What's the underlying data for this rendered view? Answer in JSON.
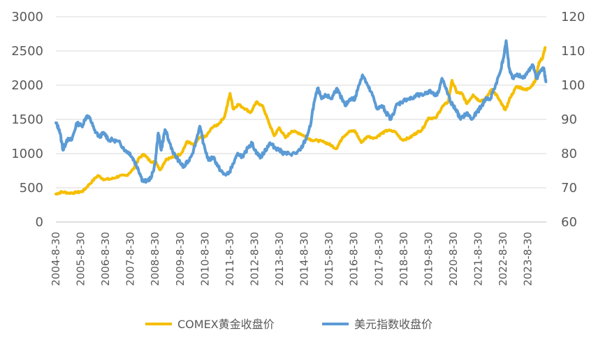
{
  "chart_data": {
    "type": "line",
    "x": [
      "2004-8-30",
      "2005-8-30",
      "2006-8-30",
      "2007-8-30",
      "2008-8-30",
      "2009-8-30",
      "2010-8-30",
      "2011-8-30",
      "2012-8-30",
      "2013-8-30",
      "2014-8-30",
      "2015-8-30",
      "2016-8-30",
      "2017-8-30",
      "2018-8-30",
      "2019-8-30",
      "2020-8-30",
      "2021-8-30",
      "2022-8-30",
      "2023-8-30"
    ],
    "y_left_ticks": [
      "0",
      "500",
      "1000",
      "1500",
      "2000",
      "2500",
      "3000"
    ],
    "y_right_ticks": [
      "60",
      "70",
      "80",
      "90",
      "100",
      "110",
      "120"
    ],
    "ylim_left": [
      0,
      3000
    ],
    "ylim_right": [
      60,
      120
    ],
    "grid": true,
    "legend_position": "bottom",
    "series": [
      {
        "name": "COMEX黄金收盘价",
        "axis": "left",
        "color": "#F5BE00",
        "points": [
          [
            2004.66,
            410
          ],
          [
            2004.9,
            440
          ],
          [
            2005.2,
            425
          ],
          [
            2005.5,
            430
          ],
          [
            2005.75,
            450
          ],
          [
            2006.0,
            550
          ],
          [
            2006.35,
            680
          ],
          [
            2006.6,
            620
          ],
          [
            2006.9,
            630
          ],
          [
            2007.2,
            670
          ],
          [
            2007.5,
            680
          ],
          [
            2007.8,
            780
          ],
          [
            2008.0,
            930
          ],
          [
            2008.2,
            990
          ],
          [
            2008.45,
            890
          ],
          [
            2008.7,
            870
          ],
          [
            2008.85,
            760
          ],
          [
            2009.1,
            920
          ],
          [
            2009.4,
            950
          ],
          [
            2009.7,
            1000
          ],
          [
            2009.95,
            1180
          ],
          [
            2010.2,
            1120
          ],
          [
            2010.45,
            1230
          ],
          [
            2010.7,
            1250
          ],
          [
            2010.95,
            1380
          ],
          [
            2011.2,
            1430
          ],
          [
            2011.45,
            1540
          ],
          [
            2011.67,
            1880
          ],
          [
            2011.8,
            1650
          ],
          [
            2012.0,
            1720
          ],
          [
            2012.3,
            1650
          ],
          [
            2012.5,
            1600
          ],
          [
            2012.75,
            1760
          ],
          [
            2013.0,
            1680
          ],
          [
            2013.25,
            1430
          ],
          [
            2013.45,
            1260
          ],
          [
            2013.65,
            1380
          ],
          [
            2013.9,
            1230
          ],
          [
            2014.15,
            1330
          ],
          [
            2014.45,
            1300
          ],
          [
            2014.7,
            1250
          ],
          [
            2014.95,
            1200
          ],
          [
            2015.2,
            1190
          ],
          [
            2015.45,
            1170
          ],
          [
            2015.7,
            1130
          ],
          [
            2015.95,
            1070
          ],
          [
            2016.2,
            1240
          ],
          [
            2016.45,
            1320
          ],
          [
            2016.7,
            1330
          ],
          [
            2016.95,
            1160
          ],
          [
            2017.2,
            1250
          ],
          [
            2017.5,
            1230
          ],
          [
            2017.75,
            1290
          ],
          [
            2018.0,
            1340
          ],
          [
            2018.3,
            1320
          ],
          [
            2018.6,
            1200
          ],
          [
            2018.9,
            1230
          ],
          [
            2019.15,
            1300
          ],
          [
            2019.4,
            1350
          ],
          [
            2019.65,
            1520
          ],
          [
            2019.95,
            1520
          ],
          [
            2020.2,
            1680
          ],
          [
            2020.45,
            1760
          ],
          [
            2020.6,
            2070
          ],
          [
            2020.8,
            1890
          ],
          [
            2021.0,
            1880
          ],
          [
            2021.2,
            1730
          ],
          [
            2021.45,
            1860
          ],
          [
            2021.7,
            1770
          ],
          [
            2021.95,
            1800
          ],
          [
            2022.2,
            1940
          ],
          [
            2022.4,
            1850
          ],
          [
            2022.6,
            1720
          ],
          [
            2022.75,
            1640
          ],
          [
            2022.95,
            1820
          ],
          [
            2023.2,
            1980
          ],
          [
            2023.4,
            1960
          ],
          [
            2023.6,
            1930
          ],
          [
            2023.8,
            1990
          ],
          [
            2023.95,
            2060
          ],
          [
            2024.1,
            2330
          ],
          [
            2024.25,
            2400
          ],
          [
            2024.35,
            2550
          ]
        ]
      },
      {
        "name": "美元指数收盘价",
        "axis": "right",
        "color": "#5B9BD5",
        "points": [
          [
            2004.66,
            89
          ],
          [
            2004.8,
            87
          ],
          [
            2004.95,
            81
          ],
          [
            2005.1,
            84
          ],
          [
            2005.3,
            84
          ],
          [
            2005.5,
            89
          ],
          [
            2005.7,
            88
          ],
          [
            2005.9,
            91
          ],
          [
            2006.05,
            90
          ],
          [
            2006.2,
            87
          ],
          [
            2006.4,
            85
          ],
          [
            2006.6,
            86
          ],
          [
            2006.8,
            84
          ],
          [
            2007.0,
            84
          ],
          [
            2007.25,
            83
          ],
          [
            2007.45,
            81
          ],
          [
            2007.65,
            80
          ],
          [
            2007.8,
            78
          ],
          [
            2007.95,
            76
          ],
          [
            2008.15,
            72
          ],
          [
            2008.3,
            72
          ],
          [
            2008.5,
            73
          ],
          [
            2008.65,
            77
          ],
          [
            2008.78,
            86
          ],
          [
            2008.9,
            81
          ],
          [
            2009.05,
            87
          ],
          [
            2009.2,
            84
          ],
          [
            2009.4,
            80
          ],
          [
            2009.6,
            78
          ],
          [
            2009.8,
            76
          ],
          [
            2010.0,
            78
          ],
          [
            2010.2,
            81
          ],
          [
            2010.45,
            88
          ],
          [
            2010.6,
            83
          ],
          [
            2010.8,
            78
          ],
          [
            2011.0,
            79
          ],
          [
            2011.2,
            76
          ],
          [
            2011.4,
            74
          ],
          [
            2011.6,
            74
          ],
          [
            2011.8,
            77
          ],
          [
            2012.0,
            80
          ],
          [
            2012.2,
            79
          ],
          [
            2012.4,
            82
          ],
          [
            2012.55,
            83
          ],
          [
            2012.75,
            80
          ],
          [
            2012.9,
            79
          ],
          [
            2013.1,
            81
          ],
          [
            2013.25,
            83
          ],
          [
            2013.45,
            82
          ],
          [
            2013.65,
            81
          ],
          [
            2013.85,
            80
          ],
          [
            2014.05,
            80
          ],
          [
            2014.3,
            80
          ],
          [
            2014.5,
            81
          ],
          [
            2014.7,
            84
          ],
          [
            2014.9,
            88
          ],
          [
            2015.05,
            95
          ],
          [
            2015.2,
            99
          ],
          [
            2015.35,
            96
          ],
          [
            2015.55,
            97
          ],
          [
            2015.75,
            96
          ],
          [
            2015.95,
            99
          ],
          [
            2016.1,
            97
          ],
          [
            2016.3,
            94
          ],
          [
            2016.5,
            96
          ],
          [
            2016.7,
            96
          ],
          [
            2016.85,
            100
          ],
          [
            2017.0,
            103
          ],
          [
            2017.2,
            100
          ],
          [
            2017.4,
            97
          ],
          [
            2017.6,
            93
          ],
          [
            2017.8,
            94
          ],
          [
            2017.95,
            92
          ],
          [
            2018.15,
            90
          ],
          [
            2018.35,
            94
          ],
          [
            2018.55,
            95
          ],
          [
            2018.8,
            96
          ],
          [
            2019.0,
            96
          ],
          [
            2019.2,
            97
          ],
          [
            2019.4,
            97
          ],
          [
            2019.6,
            98
          ],
          [
            2019.8,
            98
          ],
          [
            2020.0,
            97
          ],
          [
            2020.2,
            102
          ],
          [
            2020.35,
            99
          ],
          [
            2020.55,
            95
          ],
          [
            2020.75,
            93
          ],
          [
            2020.95,
            90
          ],
          [
            2021.2,
            92
          ],
          [
            2021.4,
            90
          ],
          [
            2021.6,
            92
          ],
          [
            2021.8,
            94
          ],
          [
            2021.95,
            96
          ],
          [
            2022.15,
            96
          ],
          [
            2022.35,
            100
          ],
          [
            2022.55,
            104
          ],
          [
            2022.7,
            109
          ],
          [
            2022.78,
            113
          ],
          [
            2022.9,
            105
          ],
          [
            2023.05,
            102
          ],
          [
            2023.25,
            103
          ],
          [
            2023.45,
            102
          ],
          [
            2023.65,
            104
          ],
          [
            2023.85,
            106
          ],
          [
            2024.0,
            102
          ],
          [
            2024.15,
            104
          ],
          [
            2024.3,
            105
          ],
          [
            2024.38,
            101
          ]
        ]
      }
    ]
  }
}
